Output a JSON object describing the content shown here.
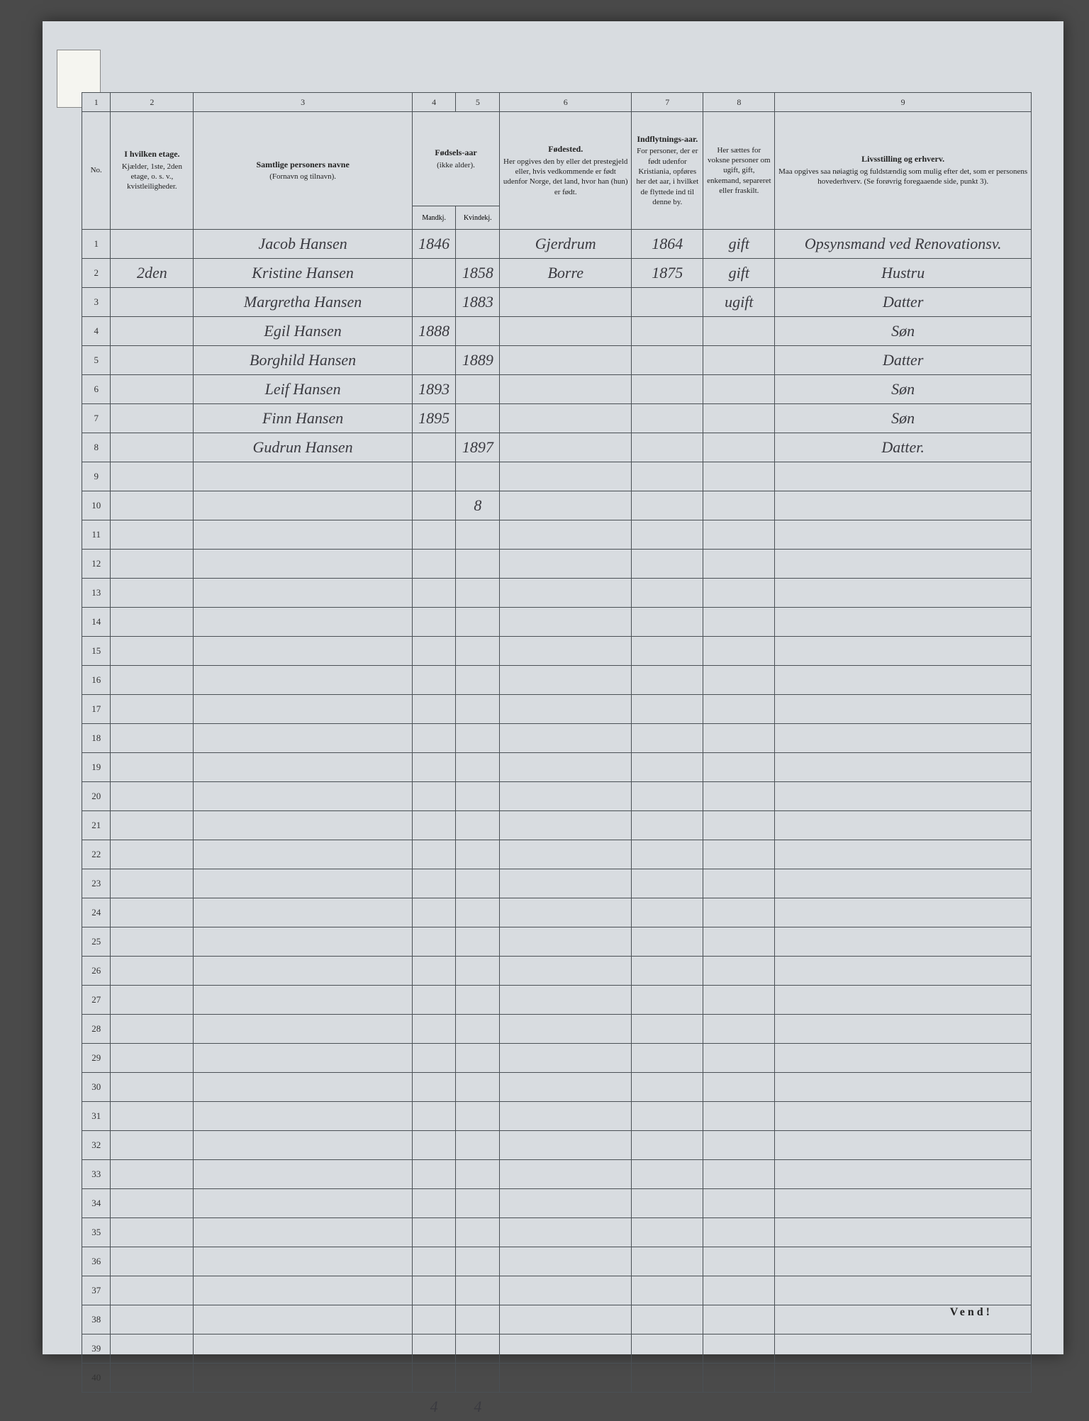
{
  "colnums": [
    "1",
    "2",
    "3",
    "4",
    "5",
    "6",
    "7",
    "8",
    "9"
  ],
  "headers": {
    "no": "No.",
    "etage": {
      "title": "I hvilken etage.",
      "sub": "Kjælder, 1ste, 2den etage, o. s. v., kvistleiligheder."
    },
    "name": {
      "title": "Samtlige personers navne",
      "sub": "(Fornavn og tilnavn)."
    },
    "birth": {
      "title": "Fødsels-aar",
      "sub": "(ikke alder).",
      "m": "Mandkj.",
      "k": "Kvindekj."
    },
    "fodested": {
      "title": "Fødested.",
      "sub": "Her opgives den by eller det prestegjeld eller, hvis vedkommende er født udenfor Norge, det land, hvor han (hun) er født."
    },
    "indflyt": {
      "title": "Indflytnings-aar.",
      "sub": "For personer, der er født udenfor Kristiania, opføres her det aar, i hvilket de flyttede ind til denne by."
    },
    "civil": {
      "title": "",
      "sub": "Her sættes for voksne personer om ugift, gift, enkemand, separeret eller fraskilt."
    },
    "erhverv": {
      "title": "Livsstilling og erhverv.",
      "sub": "Maa opgives saa nøiagtig og fuldstændig som mulig efter det, som er personens hovederhverv. (Se forøvrig foregaaende side, punkt 3)."
    }
  },
  "rows": [
    {
      "no": "1",
      "etage": "",
      "name": "Jacob Hansen",
      "m": "1846",
      "k": "",
      "fodested": "Gjerdrum",
      "indflyt": "1864",
      "civil": "gift",
      "erhverv": "Opsynsmand ved Renovationsv."
    },
    {
      "no": "2",
      "etage": "2den",
      "name": "Kristine Hansen",
      "m": "",
      "k": "1858",
      "fodested": "Borre",
      "indflyt": "1875",
      "civil": "gift",
      "erhverv": "Hustru"
    },
    {
      "no": "3",
      "etage": "",
      "name": "Margretha Hansen",
      "m": "",
      "k": "1883",
      "fodested": "",
      "indflyt": "",
      "civil": "ugift",
      "erhverv": "Datter"
    },
    {
      "no": "4",
      "etage": "",
      "name": "Egil Hansen",
      "m": "1888",
      "k": "",
      "fodested": "",
      "indflyt": "",
      "civil": "",
      "erhverv": "Søn"
    },
    {
      "no": "5",
      "etage": "",
      "name": "Borghild Hansen",
      "m": "",
      "k": "1889",
      "fodested": "",
      "indflyt": "",
      "civil": "",
      "erhverv": "Datter"
    },
    {
      "no": "6",
      "etage": "",
      "name": "Leif Hansen",
      "m": "1893",
      "k": "",
      "fodested": "",
      "indflyt": "",
      "civil": "",
      "erhverv": "Søn"
    },
    {
      "no": "7",
      "etage": "",
      "name": "Finn Hansen",
      "m": "1895",
      "k": "",
      "fodested": "",
      "indflyt": "",
      "civil": "",
      "erhverv": "Søn"
    },
    {
      "no": "8",
      "etage": "",
      "name": "Gudrun Hansen",
      "m": "",
      "k": "1897",
      "fodested": "",
      "indflyt": "",
      "civil": "",
      "erhverv": "Datter."
    },
    {
      "no": "9",
      "etage": "",
      "name": "",
      "m": "",
      "k": "",
      "fodested": "",
      "indflyt": "",
      "civil": "",
      "erhverv": ""
    },
    {
      "no": "10",
      "etage": "",
      "name": "",
      "m": "",
      "k": "8",
      "fodested": "",
      "indflyt": "",
      "civil": "",
      "erhverv": ""
    }
  ],
  "empty_start": 11,
  "empty_end": 40,
  "bottom_totals": {
    "m": "4",
    "k": "4"
  },
  "footer": "Vend!",
  "styles": {
    "page_bg": "#d8dce0",
    "outer_bg": "#4a4a4a",
    "border_color": "#4a5055",
    "handwriting_color": "#3a3a40",
    "print_color": "#222"
  }
}
